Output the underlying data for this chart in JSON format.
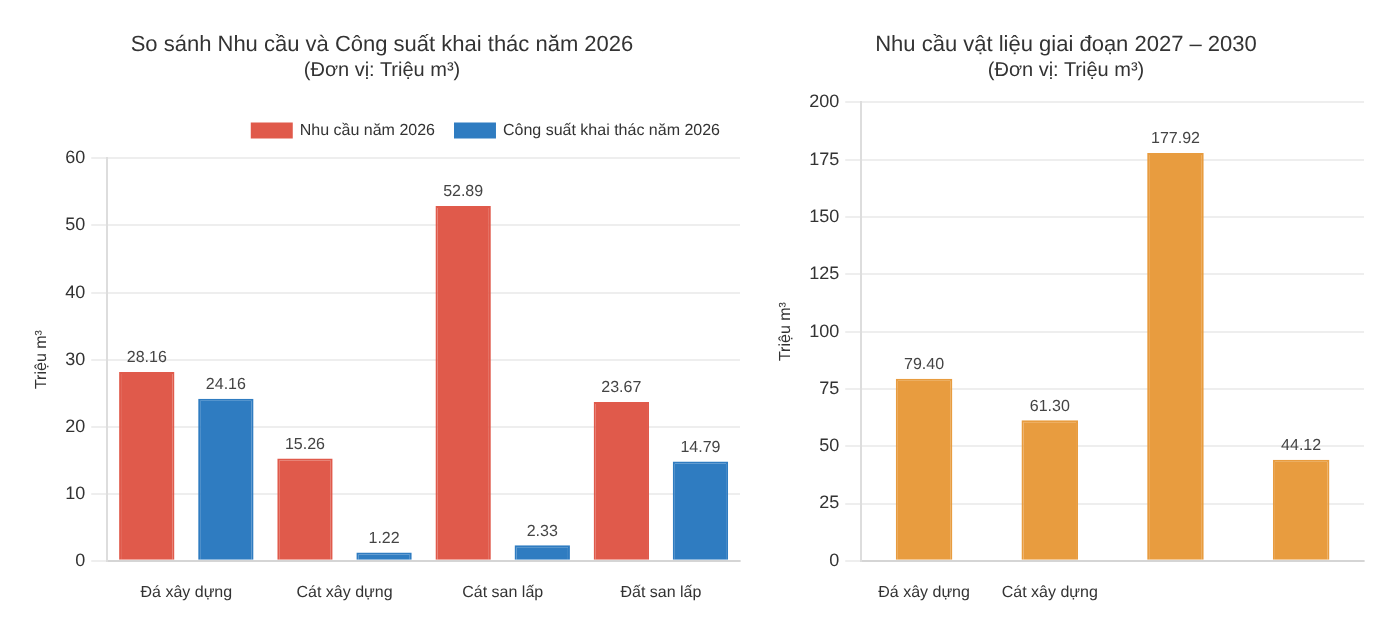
{
  "chart_data": [
    {
      "type": "bar",
      "title": "So sánh Nhu cầu và Công suất khai thác năm 2026",
      "subtitle": "(Đơn vị: Triệu m³)",
      "ylabel": "Triệu m³",
      "categories": [
        "Đá xây dựng",
        "Cát xây dựng",
        "Cát san lấp",
        "Đất san lấp"
      ],
      "series": [
        {
          "name": "Nhu cầu năm 2026",
          "color": "#e05a4b",
          "values": [
            28.16,
            15.26,
            52.89,
            23.67
          ]
        },
        {
          "name": "Công suất khai thác năm 2026",
          "color": "#2f7cc1",
          "values": [
            24.16,
            1.22,
            2.33,
            14.79
          ]
        }
      ],
      "ylim": [
        0,
        60
      ],
      "yticks": [
        0,
        10,
        20,
        30,
        40,
        50,
        60
      ],
      "grid": "y",
      "legend": "top right",
      "data_labels": true
    },
    {
      "type": "bar",
      "title": "Nhu cầu vật liệu giai đoạn 2027 – 2030",
      "subtitle": "(Đơn vị: Triệu m³)",
      "ylabel": "Triệu m³",
      "categories": [
        "Đá xây dựng",
        "Cát xây dựng",
        null,
        null
      ],
      "values": [
        79.4,
        61.3,
        177.92,
        44.12
      ],
      "color": "#e89c3f",
      "value_labels": [
        "79.40",
        "61.30",
        "177.92",
        "44.12"
      ],
      "ylim": [
        0,
        200
      ],
      "yticks": [
        0,
        25,
        50,
        75,
        100,
        125,
        150,
        175,
        200
      ],
      "grid": "y"
    }
  ]
}
